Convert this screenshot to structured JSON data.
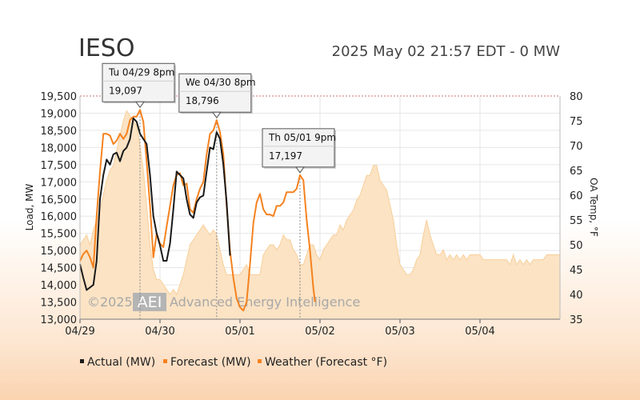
{
  "header": {
    "title": "IESO",
    "subtitle": "2025 May 02 21:57 EDT - 0 MW"
  },
  "watermark": {
    "copyright": "©2025",
    "logo": "AEI",
    "text": "Advanced Energy Intelligence"
  },
  "colors": {
    "actual": "#1a1a1a",
    "forecast": "#f5821f",
    "weather_fill": "#fbe3c4",
    "weather_line": "#f9cf99",
    "grid": "#e6e6e6",
    "top_line": "#c87878"
  },
  "chart_data": {
    "type": "line",
    "xlabel": "",
    "ylabel": "Load, MW",
    "y2label": "OA Temp, °F",
    "x_range": [
      0,
      144
    ],
    "ylim": [
      13000,
      19500
    ],
    "y2lim": [
      35,
      80
    ],
    "x_ticks": [
      {
        "x": 0,
        "label": "04/29"
      },
      {
        "x": 24,
        "label": "04/30"
      },
      {
        "x": 48,
        "label": "05/01"
      },
      {
        "x": 72,
        "label": "05/02"
      },
      {
        "x": 96,
        "label": "05/03"
      },
      {
        "x": 120,
        "label": "05/04"
      }
    ],
    "y_ticks": [
      13000,
      13500,
      14000,
      14500,
      15000,
      15500,
      16000,
      16500,
      17000,
      17500,
      18000,
      18500,
      19000,
      19500
    ],
    "y_tick_labels": [
      "13,000",
      "13,500",
      "14,000",
      "14,500",
      "15,000",
      "15,500",
      "16,000",
      "16,500",
      "17,000",
      "17,500",
      "18,000",
      "18,500",
      "19,000",
      "19,500"
    ],
    "y2_ticks": [
      35,
      40,
      45,
      50,
      55,
      60,
      65,
      70,
      75,
      80
    ],
    "grid": true,
    "legend_position": "bottom-left",
    "series": [
      {
        "name": "Actual (MW)",
        "axis": "left",
        "points": [
          [
            0,
            14600
          ],
          [
            1,
            14200
          ],
          [
            2,
            13850
          ],
          [
            4,
            14000
          ],
          [
            5,
            14700
          ],
          [
            6,
            16500
          ],
          [
            7,
            17200
          ],
          [
            8,
            17650
          ],
          [
            9,
            17500
          ],
          [
            10,
            17800
          ],
          [
            11,
            17850
          ],
          [
            12,
            17600
          ],
          [
            13,
            17900
          ],
          [
            14,
            18000
          ],
          [
            15,
            18250
          ],
          [
            16,
            18850
          ],
          [
            17,
            18750
          ],
          [
            18,
            18400
          ],
          [
            19,
            18250
          ],
          [
            20,
            18100
          ],
          [
            21,
            17200
          ],
          [
            22,
            16000
          ],
          [
            23,
            15500
          ],
          [
            24,
            15150
          ],
          [
            25,
            14700
          ],
          [
            26,
            14700
          ],
          [
            27,
            15200
          ],
          [
            28,
            16200
          ],
          [
            29,
            17300
          ],
          [
            30,
            17200
          ],
          [
            31,
            17100
          ],
          [
            32,
            16500
          ],
          [
            33,
            16050
          ],
          [
            34,
            15950
          ],
          [
            35,
            16400
          ],
          [
            36,
            16550
          ],
          [
            37,
            16600
          ],
          [
            38,
            17300
          ],
          [
            39,
            18000
          ],
          [
            40,
            17950
          ],
          [
            41,
            18450
          ],
          [
            42,
            18250
          ],
          [
            43,
            17500
          ],
          [
            44,
            16400
          ],
          [
            45,
            14850
          ]
        ]
      },
      {
        "name": "Forecast (MW)",
        "axis": "left",
        "points": [
          [
            0,
            14700
          ],
          [
            1,
            14900
          ],
          [
            2,
            15000
          ],
          [
            3,
            14800
          ],
          [
            4,
            14500
          ],
          [
            5,
            16000
          ],
          [
            6,
            17300
          ],
          [
            7,
            18400
          ],
          [
            8,
            18400
          ],
          [
            9,
            18350
          ],
          [
            10,
            18100
          ],
          [
            11,
            18200
          ],
          [
            12,
            18400
          ],
          [
            13,
            18250
          ],
          [
            14,
            18400
          ],
          [
            15,
            18800
          ],
          [
            16,
            18900
          ],
          [
            17,
            18900
          ],
          [
            18,
            19097
          ],
          [
            19,
            18750
          ],
          [
            20,
            17600
          ],
          [
            21,
            16300
          ],
          [
            22,
            14800
          ],
          [
            23,
            15500
          ],
          [
            24,
            15200
          ],
          [
            25,
            15100
          ],
          [
            26,
            15700
          ],
          [
            27,
            16300
          ],
          [
            28,
            16900
          ],
          [
            29,
            17200
          ],
          [
            30,
            17250
          ],
          [
            31,
            16900
          ],
          [
            32,
            16950
          ],
          [
            33,
            16200
          ],
          [
            34,
            16100
          ],
          [
            35,
            16500
          ],
          [
            36,
            16800
          ],
          [
            37,
            17000
          ],
          [
            38,
            17800
          ],
          [
            39,
            18400
          ],
          [
            40,
            18500
          ],
          [
            41,
            18796
          ],
          [
            42,
            18450
          ],
          [
            43,
            17800
          ],
          [
            44,
            16300
          ],
          [
            45,
            15000
          ],
          [
            46,
            14200
          ],
          [
            47,
            13600
          ],
          [
            48,
            13350
          ],
          [
            49,
            13250
          ],
          [
            50,
            13500
          ],
          [
            51,
            14600
          ],
          [
            52,
            15800
          ],
          [
            53,
            16400
          ],
          [
            54,
            16650
          ],
          [
            55,
            16200
          ],
          [
            56,
            16050
          ],
          [
            57,
            16050
          ],
          [
            58,
            16000
          ],
          [
            59,
            16300
          ],
          [
            60,
            16300
          ],
          [
            61,
            16400
          ],
          [
            62,
            16700
          ],
          [
            63,
            16700
          ],
          [
            64,
            16700
          ],
          [
            65,
            16800
          ],
          [
            66,
            17197
          ],
          [
            67,
            17050
          ],
          [
            68,
            15900
          ],
          [
            69,
            15000
          ],
          [
            70,
            13900
          ],
          [
            70.5,
            13500
          ]
        ]
      },
      {
        "name": "Weather (Forecast °F)",
        "axis": "right",
        "points": [
          [
            0,
            50
          ],
          [
            1,
            51
          ],
          [
            2,
            52
          ],
          [
            3,
            50
          ],
          [
            4,
            53
          ],
          [
            5,
            55
          ],
          [
            6,
            57
          ],
          [
            7,
            60
          ],
          [
            8,
            63
          ],
          [
            9,
            65
          ],
          [
            10,
            66
          ],
          [
            11,
            69
          ],
          [
            12,
            72
          ],
          [
            13,
            75
          ],
          [
            14,
            77
          ],
          [
            15,
            76
          ],
          [
            16,
            75
          ],
          [
            17,
            74
          ],
          [
            18,
            70
          ],
          [
            19,
            65
          ],
          [
            20,
            58
          ],
          [
            21,
            50
          ],
          [
            22,
            45
          ],
          [
            23,
            43
          ],
          [
            24,
            43
          ],
          [
            25,
            42
          ],
          [
            26,
            41
          ],
          [
            27,
            40
          ],
          [
            28,
            41
          ],
          [
            29,
            40
          ],
          [
            30,
            42
          ],
          [
            31,
            44
          ],
          [
            32,
            47
          ],
          [
            33,
            50
          ],
          [
            34,
            51
          ],
          [
            35,
            52
          ],
          [
            36,
            53
          ],
          [
            37,
            54
          ],
          [
            38,
            53
          ],
          [
            39,
            52
          ],
          [
            40,
            53
          ],
          [
            41,
            52
          ],
          [
            42,
            49
          ],
          [
            43,
            46
          ],
          [
            44,
            44
          ],
          [
            45,
            44
          ],
          [
            46,
            44
          ],
          [
            47,
            44
          ],
          [
            48,
            44
          ],
          [
            49,
            45
          ],
          [
            50,
            46
          ],
          [
            51,
            44
          ],
          [
            52,
            44
          ],
          [
            53,
            44
          ],
          [
            54,
            44
          ],
          [
            55,
            48
          ],
          [
            56,
            49
          ],
          [
            57,
            50
          ],
          [
            58,
            50
          ],
          [
            59,
            49
          ],
          [
            60,
            50
          ],
          [
            61,
            52
          ],
          [
            62,
            51
          ],
          [
            63,
            51
          ],
          [
            64,
            49
          ],
          [
            65,
            48
          ],
          [
            66,
            46
          ],
          [
            67,
            46
          ],
          [
            68,
            48
          ],
          [
            69,
            50
          ],
          [
            70,
            50
          ],
          [
            71,
            48
          ],
          [
            72,
            47
          ],
          [
            73,
            49
          ],
          [
            74,
            50
          ],
          [
            75,
            51
          ],
          [
            76,
            52
          ],
          [
            77,
            52
          ],
          [
            78,
            54
          ],
          [
            79,
            53
          ],
          [
            80,
            55
          ],
          [
            81,
            56
          ],
          [
            82,
            57
          ],
          [
            83,
            59
          ],
          [
            84,
            60
          ],
          [
            85,
            62
          ],
          [
            86,
            64
          ],
          [
            87,
            64
          ],
          [
            88,
            66
          ],
          [
            89,
            66
          ],
          [
            90,
            63
          ],
          [
            91,
            62
          ],
          [
            92,
            61
          ],
          [
            93,
            58
          ],
          [
            94,
            55
          ],
          [
            95,
            50
          ],
          [
            96,
            46
          ],
          [
            97,
            45
          ],
          [
            98,
            44
          ],
          [
            99,
            44
          ],
          [
            100,
            45
          ],
          [
            101,
            47
          ],
          [
            102,
            48
          ],
          [
            103,
            52
          ],
          [
            104,
            55
          ],
          [
            105,
            52
          ],
          [
            106,
            50
          ],
          [
            107,
            48
          ],
          [
            108,
            48
          ],
          [
            109,
            49
          ],
          [
            110,
            47
          ],
          [
            111,
            48
          ],
          [
            112,
            47
          ],
          [
            113,
            48
          ],
          [
            114,
            47
          ],
          [
            115,
            48
          ],
          [
            116,
            47
          ],
          [
            117,
            48
          ],
          [
            118,
            48
          ],
          [
            119,
            48
          ],
          [
            120,
            48
          ],
          [
            121,
            47
          ],
          [
            122,
            47
          ],
          [
            123,
            47
          ],
          [
            124,
            47
          ],
          [
            125,
            47
          ],
          [
            126,
            47
          ],
          [
            127,
            47
          ],
          [
            128,
            47
          ],
          [
            129,
            46
          ],
          [
            130,
            48
          ],
          [
            131,
            46
          ],
          [
            132,
            47
          ],
          [
            133,
            46
          ],
          [
            134,
            47
          ],
          [
            135,
            46
          ],
          [
            136,
            47
          ],
          [
            137,
            47
          ],
          [
            138,
            47
          ],
          [
            139,
            47
          ],
          [
            140,
            48
          ],
          [
            141,
            48
          ],
          [
            142,
            48
          ],
          [
            143,
            48
          ],
          [
            144,
            48
          ]
        ]
      }
    ],
    "annotations": [
      {
        "x": 18,
        "y": 19097,
        "label": "Tu 04/29 8pm",
        "value": "19,097"
      },
      {
        "x": 41,
        "y": 18796,
        "label": "We 04/30 8pm",
        "value": "18,796"
      },
      {
        "x": 66,
        "y": 17197,
        "label": "Th 05/01 9pm",
        "value": "17,197"
      }
    ]
  }
}
